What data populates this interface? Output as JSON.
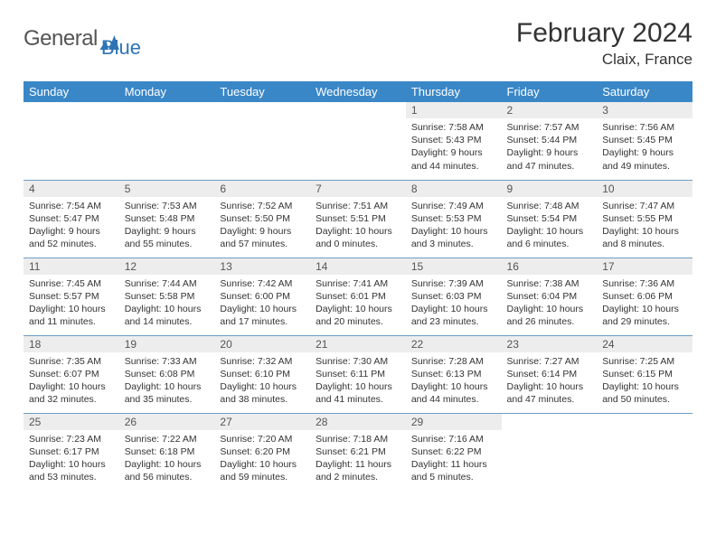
{
  "brand": {
    "part1": "General",
    "part2": "Blue"
  },
  "title": "February 2024",
  "location": "Claix, France",
  "colors": {
    "header_bg": "#3a87c7",
    "header_text": "#ffffff",
    "daynum_bg": "#ededed",
    "border": "#6d9dc6",
    "brand_blue": "#2e74b5"
  },
  "weekdays": [
    "Sunday",
    "Monday",
    "Tuesday",
    "Wednesday",
    "Thursday",
    "Friday",
    "Saturday"
  ],
  "weeks": [
    [
      null,
      null,
      null,
      null,
      {
        "n": "1",
        "sr": "7:58 AM",
        "ss": "5:43 PM",
        "dl1": "9 hours",
        "dl2": "and 44 minutes."
      },
      {
        "n": "2",
        "sr": "7:57 AM",
        "ss": "5:44 PM",
        "dl1": "9 hours",
        "dl2": "and 47 minutes."
      },
      {
        "n": "3",
        "sr": "7:56 AM",
        "ss": "5:45 PM",
        "dl1": "9 hours",
        "dl2": "and 49 minutes."
      }
    ],
    [
      {
        "n": "4",
        "sr": "7:54 AM",
        "ss": "5:47 PM",
        "dl1": "9 hours",
        "dl2": "and 52 minutes."
      },
      {
        "n": "5",
        "sr": "7:53 AM",
        "ss": "5:48 PM",
        "dl1": "9 hours",
        "dl2": "and 55 minutes."
      },
      {
        "n": "6",
        "sr": "7:52 AM",
        "ss": "5:50 PM",
        "dl1": "9 hours",
        "dl2": "and 57 minutes."
      },
      {
        "n": "7",
        "sr": "7:51 AM",
        "ss": "5:51 PM",
        "dl1": "10 hours",
        "dl2": "and 0 minutes."
      },
      {
        "n": "8",
        "sr": "7:49 AM",
        "ss": "5:53 PM",
        "dl1": "10 hours",
        "dl2": "and 3 minutes."
      },
      {
        "n": "9",
        "sr": "7:48 AM",
        "ss": "5:54 PM",
        "dl1": "10 hours",
        "dl2": "and 6 minutes."
      },
      {
        "n": "10",
        "sr": "7:47 AM",
        "ss": "5:55 PM",
        "dl1": "10 hours",
        "dl2": "and 8 minutes."
      }
    ],
    [
      {
        "n": "11",
        "sr": "7:45 AM",
        "ss": "5:57 PM",
        "dl1": "10 hours",
        "dl2": "and 11 minutes."
      },
      {
        "n": "12",
        "sr": "7:44 AM",
        "ss": "5:58 PM",
        "dl1": "10 hours",
        "dl2": "and 14 minutes."
      },
      {
        "n": "13",
        "sr": "7:42 AM",
        "ss": "6:00 PM",
        "dl1": "10 hours",
        "dl2": "and 17 minutes."
      },
      {
        "n": "14",
        "sr": "7:41 AM",
        "ss": "6:01 PM",
        "dl1": "10 hours",
        "dl2": "and 20 minutes."
      },
      {
        "n": "15",
        "sr": "7:39 AM",
        "ss": "6:03 PM",
        "dl1": "10 hours",
        "dl2": "and 23 minutes."
      },
      {
        "n": "16",
        "sr": "7:38 AM",
        "ss": "6:04 PM",
        "dl1": "10 hours",
        "dl2": "and 26 minutes."
      },
      {
        "n": "17",
        "sr": "7:36 AM",
        "ss": "6:06 PM",
        "dl1": "10 hours",
        "dl2": "and 29 minutes."
      }
    ],
    [
      {
        "n": "18",
        "sr": "7:35 AM",
        "ss": "6:07 PM",
        "dl1": "10 hours",
        "dl2": "and 32 minutes."
      },
      {
        "n": "19",
        "sr": "7:33 AM",
        "ss": "6:08 PM",
        "dl1": "10 hours",
        "dl2": "and 35 minutes."
      },
      {
        "n": "20",
        "sr": "7:32 AM",
        "ss": "6:10 PM",
        "dl1": "10 hours",
        "dl2": "and 38 minutes."
      },
      {
        "n": "21",
        "sr": "7:30 AM",
        "ss": "6:11 PM",
        "dl1": "10 hours",
        "dl2": "and 41 minutes."
      },
      {
        "n": "22",
        "sr": "7:28 AM",
        "ss": "6:13 PM",
        "dl1": "10 hours",
        "dl2": "and 44 minutes."
      },
      {
        "n": "23",
        "sr": "7:27 AM",
        "ss": "6:14 PM",
        "dl1": "10 hours",
        "dl2": "and 47 minutes."
      },
      {
        "n": "24",
        "sr": "7:25 AM",
        "ss": "6:15 PM",
        "dl1": "10 hours",
        "dl2": "and 50 minutes."
      }
    ],
    [
      {
        "n": "25",
        "sr": "7:23 AM",
        "ss": "6:17 PM",
        "dl1": "10 hours",
        "dl2": "and 53 minutes."
      },
      {
        "n": "26",
        "sr": "7:22 AM",
        "ss": "6:18 PM",
        "dl1": "10 hours",
        "dl2": "and 56 minutes."
      },
      {
        "n": "27",
        "sr": "7:20 AM",
        "ss": "6:20 PM",
        "dl1": "10 hours",
        "dl2": "and 59 minutes."
      },
      {
        "n": "28",
        "sr": "7:18 AM",
        "ss": "6:21 PM",
        "dl1": "11 hours",
        "dl2": "and 2 minutes."
      },
      {
        "n": "29",
        "sr": "7:16 AM",
        "ss": "6:22 PM",
        "dl1": "11 hours",
        "dl2": "and 5 minutes."
      },
      null,
      null
    ]
  ]
}
